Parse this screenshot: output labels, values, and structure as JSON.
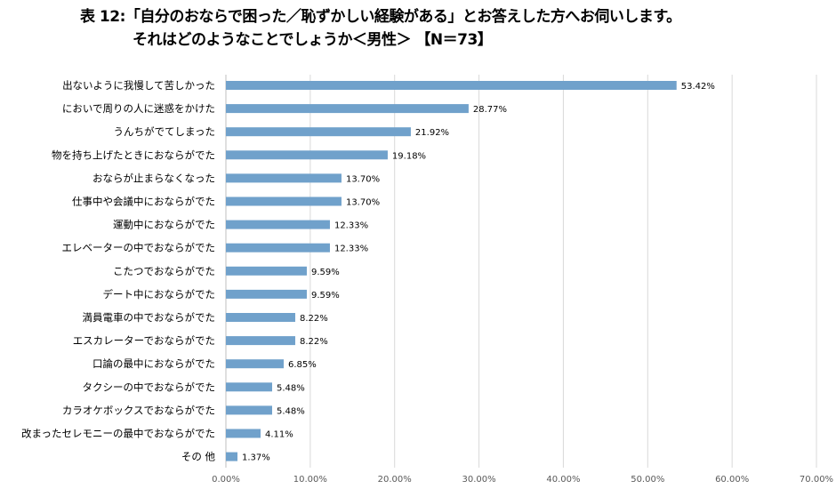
{
  "title": {
    "line1": "表 12:「自分のおならで困った／恥ずかしい経験がある」とお答えした方へお伺いします。",
    "line2": "それはどのようなことでしょうか＜男性＞ 【N＝73】"
  },
  "chart_data": {
    "type": "bar",
    "orientation": "horizontal",
    "categories": [
      "出ないように我慢して苦しかった",
      "においで周りの人に迷惑をかけた",
      "うんちがでてしまった",
      "物を持ち上げたときにおならがでた",
      "おならが止まらなくなった",
      "仕事中や会議中におならがでた",
      "運動中におならがでた",
      "エレベーターの中でおならがでた",
      "こたつでおならがでた",
      "デート中におならがでた",
      "満員電車の中でおならがでた",
      "エスカレーターでおならがでた",
      "口論の最中におならがでた",
      "タクシーの中でおならがでた",
      "カラオケボックスでおならがでた",
      "改まったセレモニーの最中でおならがでた",
      "その 他"
    ],
    "values": [
      53.42,
      28.77,
      21.92,
      19.18,
      13.7,
      13.7,
      12.33,
      12.33,
      9.59,
      9.59,
      8.22,
      8.22,
      6.85,
      5.48,
      5.48,
      4.11,
      1.37
    ],
    "value_labels": [
      "53.42%",
      "28.77%",
      "21.92%",
      "19.18%",
      "13.70%",
      "13.70%",
      "12.33%",
      "12.33%",
      "9.59%",
      "9.59%",
      "8.22%",
      "8.22%",
      "6.85%",
      "5.48%",
      "5.48%",
      "4.11%",
      "1.37%"
    ],
    "xticks": [
      "0.00%",
      "10.00%",
      "20.00%",
      "30.00%",
      "40.00%",
      "50.00%",
      "60.00%",
      "70.00%"
    ],
    "xlim": [
      0,
      70
    ],
    "grid": true,
    "bar_color": "#70a1cb",
    "grid_color": "#d9d9d9"
  }
}
